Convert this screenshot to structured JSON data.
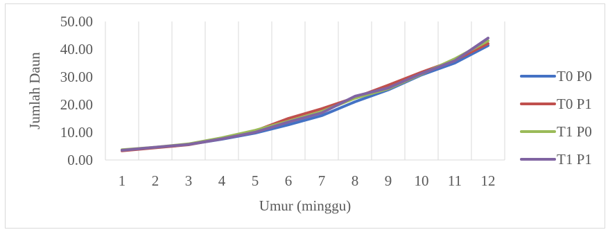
{
  "chart_data": {
    "type": "line",
    "title": "",
    "xlabel": "Umur (minggu)",
    "ylabel": "Jumlah Daun",
    "categories": [
      "1",
      "2",
      "3",
      "4",
      "5",
      "6",
      "7",
      "8",
      "9",
      "10",
      "11",
      "12"
    ],
    "y_ticks": [
      "0.00",
      "10.00",
      "20.00",
      "30.00",
      "40.00",
      "50.00"
    ],
    "ylim": [
      0,
      50
    ],
    "grid": "vertical",
    "legend_position": "right",
    "series": [
      {
        "name": "T0 P0",
        "color": "#4472c4",
        "values": [
          3.6,
          4.5,
          5.6,
          7.5,
          9.7,
          12.7,
          16.0,
          21.0,
          25.3,
          30.7,
          35.0,
          41.3
        ]
      },
      {
        "name": "T0 P1",
        "color": "#c0504d",
        "values": [
          3.3,
          4.4,
          5.5,
          7.7,
          10.5,
          15.0,
          18.5,
          22.5,
          27.0,
          31.7,
          36.0,
          42.0
        ]
      },
      {
        "name": "T1 P0",
        "color": "#9bbb59",
        "values": [
          3.7,
          4.6,
          5.8,
          8.0,
          10.7,
          14.0,
          17.5,
          22.3,
          25.7,
          31.0,
          36.5,
          43.0
        ]
      },
      {
        "name": "T1 P1",
        "color": "#8064a2",
        "values": [
          3.5,
          4.6,
          5.6,
          7.6,
          10.0,
          13.7,
          17.0,
          23.0,
          26.0,
          31.2,
          35.8,
          44.0
        ]
      }
    ]
  }
}
